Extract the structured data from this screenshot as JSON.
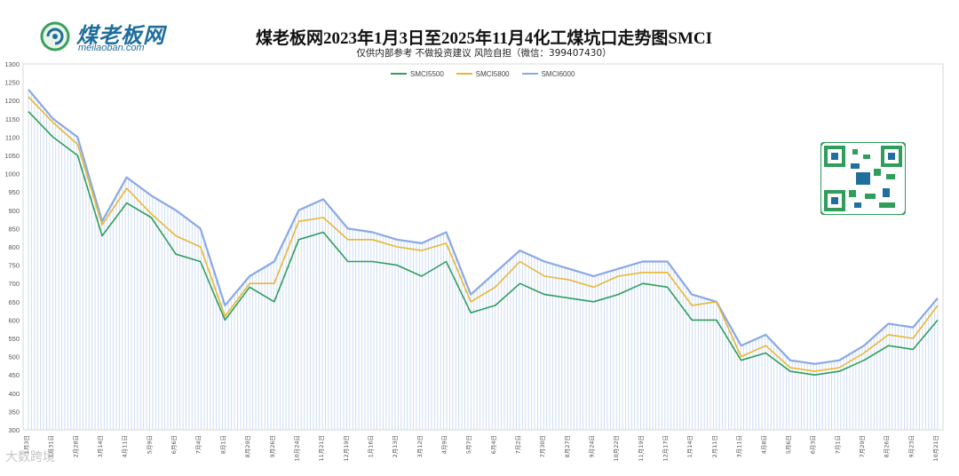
{
  "logo": {
    "text_cn": "煤老板网",
    "text_en": "meilaoban.com"
  },
  "header": {
    "title": "煤老板网2023年1月3日至2025年11月4化工煤坑口走势图SMCI",
    "subtitle": "仅供内部参考 不做投资建议 风险自担（微信：399407430）"
  },
  "watermark": "大数跨境",
  "colors": {
    "SMCI5500": "#2e9e5a",
    "SMCI5800": "#e8b832",
    "SMCI6000": "#8aa8e6",
    "fill": "#b8cdf2"
  },
  "chart_data": {
    "type": "line",
    "title": "煤老板网2023年1月3日至2025年11月4化工煤坑口走势图SMCI",
    "xlabel": "",
    "ylabel": "",
    "ylim": [
      300,
      1300
    ],
    "yticks": [
      300,
      350,
      400,
      450,
      500,
      550,
      600,
      650,
      700,
      750,
      800,
      850,
      900,
      950,
      1000,
      1050,
      1100,
      1150,
      1200,
      1250,
      1300
    ],
    "grid": false,
    "legend_position": "top-center",
    "x_tick_labels_note": "dense rotated date ticks, approx readable",
    "x": [
      "1月3日",
      "1月31日",
      "2月28日",
      "3月14日",
      "4月11日",
      "5月9日",
      "6月6日",
      "7月4日",
      "8月1日",
      "8月29日",
      "9月26日",
      "10月24日",
      "11月21日",
      "12月19日",
      "1月16日",
      "2月13日",
      "3月12日",
      "4月9日",
      "5月7日",
      "6月4日",
      "7月2日",
      "7月30日",
      "8月27日",
      "9月24日",
      "10月22日",
      "11月19日",
      "12月17日",
      "1月14日",
      "2月11日",
      "3月11日",
      "4月8日",
      "5月6日",
      "6月3日",
      "7月1日",
      "7月29日",
      "8月26日",
      "9月23日",
      "10月21日"
    ],
    "series": [
      {
        "name": "SMCI5500",
        "values": [
          1170,
          1100,
          1050,
          830,
          920,
          880,
          780,
          760,
          600,
          690,
          650,
          820,
          840,
          760,
          760,
          750,
          720,
          760,
          620,
          640,
          700,
          670,
          660,
          650,
          670,
          700,
          690,
          600,
          600,
          490,
          510,
          460,
          450,
          460,
          490,
          530,
          520,
          600
        ]
      },
      {
        "name": "SMCI5800",
        "values": [
          1210,
          1140,
          1080,
          860,
          960,
          890,
          830,
          800,
          610,
          700,
          700,
          870,
          880,
          820,
          820,
          800,
          790,
          810,
          650,
          690,
          760,
          720,
          710,
          690,
          720,
          730,
          730,
          640,
          650,
          500,
          530,
          470,
          460,
          470,
          510,
          560,
          550,
          640
        ]
      },
      {
        "name": "SMCI6000",
        "values": [
          1230,
          1150,
          1100,
          870,
          990,
          940,
          900,
          850,
          640,
          720,
          760,
          900,
          930,
          850,
          840,
          820,
          810,
          840,
          670,
          730,
          790,
          760,
          740,
          720,
          740,
          760,
          760,
          670,
          650,
          530,
          560,
          490,
          480,
          490,
          530,
          590,
          580,
          660
        ]
      }
    ]
  }
}
